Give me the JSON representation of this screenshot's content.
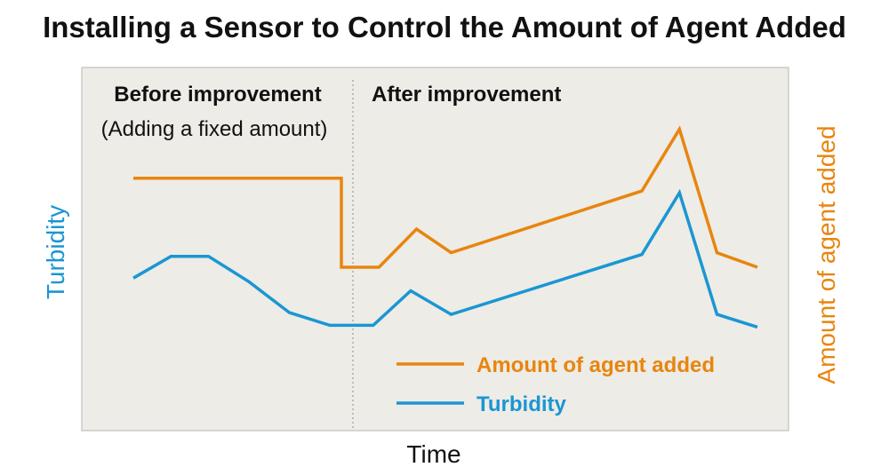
{
  "chart_data": {
    "type": "line",
    "title": "Installing a Sensor to Control the Amount of Agent Added",
    "xlabel": "Time",
    "ylabel": "Turbidity",
    "ylabel_right": "Amount of agent added",
    "phases": {
      "before": "Before improvement",
      "before_note": "(Adding a fixed amount)",
      "after": "After improvement"
    },
    "plot_background": "#edece6",
    "ylim": [
      0,
      100
    ],
    "series": [
      {
        "name": "Amount of agent added",
        "color": "#e8850f",
        "points": [
          [
            0,
            69.5
          ],
          [
            36,
            69.5
          ],
          [
            36,
            45
          ],
          [
            42.5,
            45
          ],
          [
            49,
            55.5
          ],
          [
            55,
            49
          ],
          [
            88,
            66
          ],
          [
            94.5,
            83
          ],
          [
            101,
            49
          ],
          [
            108,
            45
          ]
        ]
      },
      {
        "name": "Turbidity",
        "color": "#1a96d3",
        "points": [
          [
            0,
            42
          ],
          [
            6.5,
            48
          ],
          [
            13,
            48
          ],
          [
            20,
            41
          ],
          [
            27,
            32.5
          ],
          [
            34,
            29
          ],
          [
            41.5,
            29
          ],
          [
            48,
            38.5
          ],
          [
            55,
            32
          ],
          [
            88,
            48.5
          ],
          [
            94.5,
            65.5
          ],
          [
            101,
            32
          ],
          [
            108,
            28.5
          ]
        ]
      }
    ]
  }
}
